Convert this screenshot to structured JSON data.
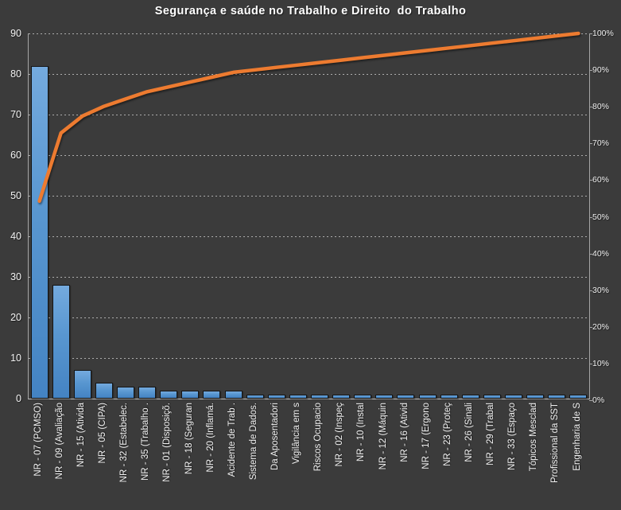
{
  "chart_data": {
    "type": "pareto (bar + cumulative line)",
    "title": "Segurança e saúde no Trabalho e Direito  do Trabalho",
    "categories": [
      "NR - 07 (PCMSO)",
      "NR - 09 (Avaliação",
      "NR - 15 (Ativida",
      "NR - 05 (CIPA)",
      "NR - 32 (Estabelec.",
      "NR - 35 (Trabalho .",
      "NR - 01 (Disposiçõ.",
      "NR - 18 (Seguran",
      "NR - 20 (Inflamá.",
      "Acidente de Trab .",
      "Sistema de Dados.",
      "Da Aposentadori",
      "Vigilância em s",
      "Riscos Ocupacio",
      "NR - 02 (Inspeç",
      "NR - 10 (Instal",
      "NR - 12 (Máquin",
      "NR - 16 (Ativid",
      "NR - 17 (Ergono",
      "NR - 23 (Proteç",
      "NR - 26 (Sinali",
      "NR - 29 (Trabal",
      "NR - 33 (Espaço",
      "Tópicos Mesclad",
      "Profissional da SST",
      "Engenharia de S"
    ],
    "series": [
      {
        "name": "frequency-bars",
        "type": "bar",
        "color": "#5B9BD5",
        "values": [
          82,
          28,
          7,
          4,
          3,
          3,
          2,
          2,
          2,
          2,
          1,
          1,
          1,
          1,
          1,
          1,
          1,
          1,
          1,
          1,
          1,
          1,
          1,
          1,
          1,
          1
        ]
      },
      {
        "name": "cumulative-percent-line",
        "type": "line",
        "color": "#ED7B30",
        "values": [
          54.3,
          72.85,
          77.48,
          80.13,
          82.12,
          84.11,
          85.43,
          86.75,
          88.08,
          89.4,
          90.07,
          90.73,
          91.39,
          92.05,
          92.72,
          93.38,
          94.04,
          94.7,
          95.36,
          96.03,
          96.69,
          97.35,
          98.01,
          98.68,
          99.34,
          100
        ]
      }
    ],
    "left_axis": {
      "min": 0,
      "max": 90,
      "step": 10,
      "tick_labels": [
        "0",
        "10",
        "20",
        "30",
        "40",
        "50",
        "60",
        "70",
        "80",
        "90"
      ]
    },
    "right_axis": {
      "min": 0,
      "max": 100,
      "step": 10,
      "tick_labels": [
        "0%",
        "10%",
        "20%",
        "30%",
        "40%",
        "50%",
        "60%",
        "70%",
        "80%",
        "90%",
        "100%"
      ]
    },
    "grid": true,
    "legend": "none",
    "colors": {
      "background": "#3B3B3B",
      "bar_fill_top": "#74AADE",
      "bar_fill_bottom": "#4483C3",
      "bar_border": "#151515",
      "line": "#ED7B30",
      "grid": "#D2D2D2",
      "axis": "#A6A6A6",
      "text": "#F2F2F2"
    }
  }
}
